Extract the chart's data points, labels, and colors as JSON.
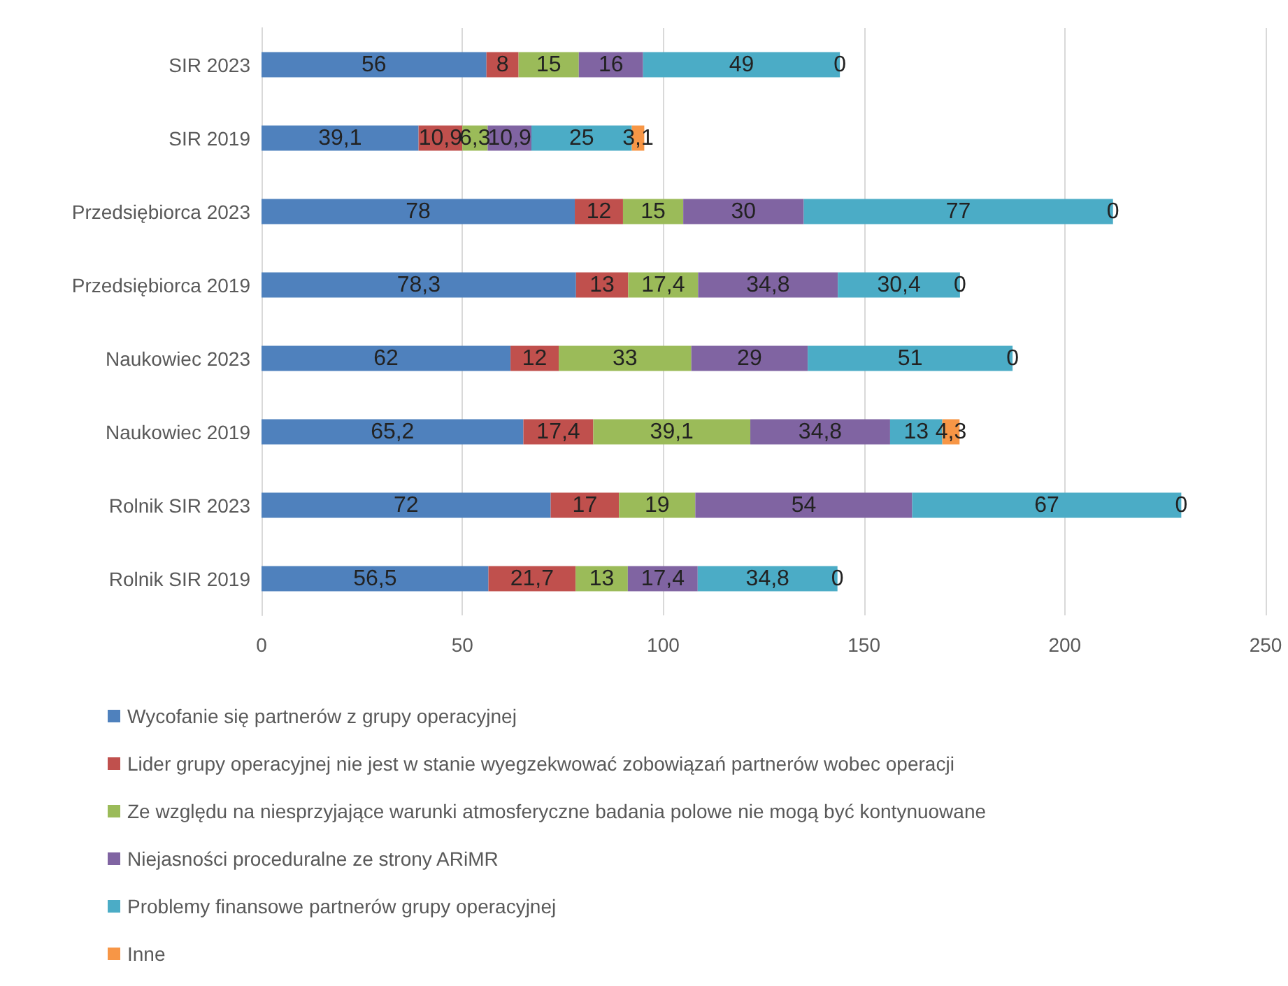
{
  "chart_data": {
    "type": "bar",
    "orientation": "horizontal",
    "stacked": true,
    "categories": [
      "SIR 2023",
      "SIR 2019",
      "Przedsiębiorca 2023",
      "Przedsiębiorca 2019",
      "Naukowiec 2023",
      "Naukowiec 2019",
      "Rolnik SIR 2023",
      "Rolnik SIR 2019"
    ],
    "xlim": [
      0,
      250
    ],
    "xticks": [
      0,
      50,
      100,
      150,
      200,
      250
    ],
    "grid": "x",
    "legend": "bottom",
    "series": [
      {
        "name": "Wycofanie się partnerów z grupy operacyjnej",
        "color": "#4f81bd",
        "values": [
          56,
          39.1,
          78,
          78.3,
          62,
          65.2,
          72,
          56.5
        ],
        "value_labels": [
          "56",
          "39,1",
          "78",
          "78,3",
          "62",
          "65,2",
          "72",
          "56,5"
        ]
      },
      {
        "name": "Lider grupy operacyjnej nie jest w stanie wyegzekwować zobowiązań partnerów wobec operacji",
        "color": "#c0504d",
        "values": [
          8,
          10.9,
          12,
          13,
          12,
          17.4,
          17,
          21.7
        ],
        "value_labels": [
          "8",
          "10,9",
          "12",
          "13",
          "12",
          "17,4",
          "17",
          "21,7"
        ]
      },
      {
        "name": "Ze względu na niesprzyjające warunki atmosferyczne badania polowe nie mogą być kontynuowane",
        "color": "#9bbb59",
        "values": [
          15,
          6.3,
          15,
          17.4,
          33,
          39.1,
          19,
          13
        ],
        "value_labels": [
          "15",
          "6,3",
          "15",
          "17,4",
          "33",
          "39,1",
          "19",
          "13"
        ]
      },
      {
        "name": "Niejasności proceduralne ze strony ARiMR",
        "color": "#8064a2",
        "values": [
          16,
          10.9,
          30,
          34.8,
          29,
          34.8,
          54,
          17.4
        ],
        "value_labels": [
          "16",
          "10,9",
          "30",
          "34,8",
          "29",
          "34,8",
          "54",
          "17,4"
        ]
      },
      {
        "name": "Problemy finansowe partnerów grupy operacyjnej",
        "color": "#4bacc6",
        "values": [
          49,
          25,
          77,
          30.4,
          51,
          13,
          67,
          34.8
        ],
        "value_labels": [
          "49",
          "25",
          "77",
          "30,4",
          "51",
          "13",
          "67",
          "34,8"
        ]
      },
      {
        "name": "Inne",
        "color": "#f79646",
        "values": [
          0,
          3.1,
          0,
          0,
          0,
          4.3,
          0,
          0
        ],
        "value_labels": [
          "0",
          "3,1",
          "0",
          "0",
          "0",
          "4,3",
          "0",
          "0"
        ]
      }
    ]
  }
}
